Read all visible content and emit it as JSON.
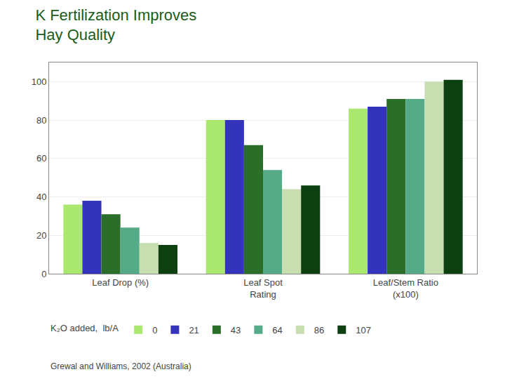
{
  "chart_data": {
    "type": "bar",
    "title": "K Fertilization Improves\nHay Quality",
    "title_color": "#1a5c1a",
    "categories": [
      "Leaf Drop (%)",
      "Leaf Spot\nRating",
      "Leaf/Stem Ratio\n(x100)"
    ],
    "series": [
      {
        "name": "0",
        "color": "#aae870",
        "values": [
          36,
          80,
          86
        ]
      },
      {
        "name": "21",
        "color": "#3333bb",
        "values": [
          38,
          80,
          87
        ]
      },
      {
        "name": "43",
        "color": "#2a6e2a",
        "values": [
          31,
          67,
          91
        ]
      },
      {
        "name": "64",
        "color": "#55aa88",
        "values": [
          24,
          54,
          91
        ]
      },
      {
        "name": "86",
        "color": "#c8ddb0",
        "values": [
          16,
          44,
          100
        ]
      },
      {
        "name": "107",
        "color": "#0d4010",
        "values": [
          15,
          46,
          101
        ]
      }
    ],
    "legend_title": "K₂O added,  lb/A",
    "annotations": [
      "Grewal and Williams, 2002 (Australia)"
    ],
    "ylim": [
      0,
      110
    ],
    "yticks": [
      0,
      20,
      40,
      60,
      80,
      100
    ],
    "grid": true,
    "legend": "bottom"
  }
}
